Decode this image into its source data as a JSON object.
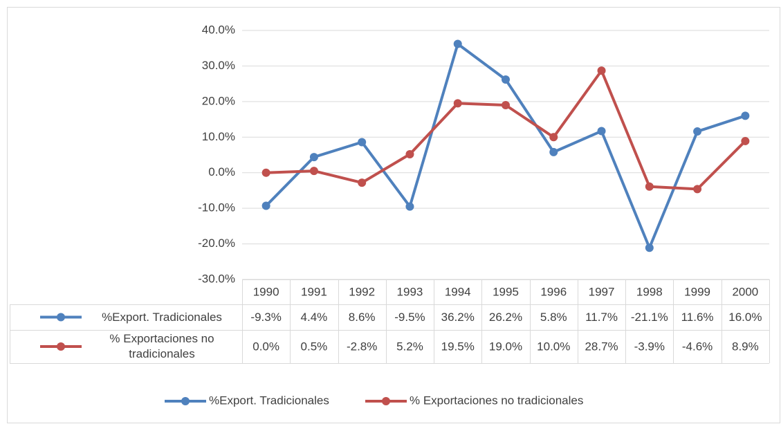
{
  "chart_data": {
    "type": "line",
    "categories": [
      "1990",
      "1991",
      "1992",
      "1993",
      "1994",
      "1995",
      "1996",
      "1997",
      "1998",
      "1999",
      "2000"
    ],
    "series": [
      {
        "name": "%Export. Tradicionales",
        "color": "#4f81bd",
        "values": [
          -9.3,
          4.4,
          8.6,
          -9.5,
          36.2,
          26.2,
          5.8,
          11.7,
          -21.1,
          11.6,
          16.0
        ],
        "value_labels": [
          "-9.3%",
          "4.4%",
          "8.6%",
          "-9.5%",
          "36.2%",
          "26.2%",
          "5.8%",
          "11.7%",
          "-21.1%",
          "11.6%",
          "16.0%"
        ]
      },
      {
        "name": "% Exportaciones no tradicionales",
        "color": "#c0504d",
        "values": [
          0.0,
          0.5,
          -2.8,
          5.2,
          19.5,
          19.0,
          10.0,
          28.7,
          -3.9,
          -4.6,
          8.9
        ],
        "value_labels": [
          "0.0%",
          "0.5%",
          "-2.8%",
          "5.2%",
          "19.5%",
          "19.0%",
          "10.0%",
          "28.7%",
          "-3.9%",
          "-4.6%",
          "8.9%"
        ]
      }
    ],
    "ylim": [
      -30,
      40
    ],
    "yticks": [
      {
        "value": -30,
        "label": "-30.0%"
      },
      {
        "value": -20,
        "label": "-20.0%"
      },
      {
        "value": -10,
        "label": "-10.0%"
      },
      {
        "value": 0,
        "label": "0.0%"
      },
      {
        "value": 10,
        "label": "10.0%"
      },
      {
        "value": 20,
        "label": "20.0%"
      },
      {
        "value": 30,
        "label": "30.0%"
      },
      {
        "value": 40,
        "label": "40.0%"
      }
    ],
    "grid": true,
    "legend": "bottom"
  }
}
